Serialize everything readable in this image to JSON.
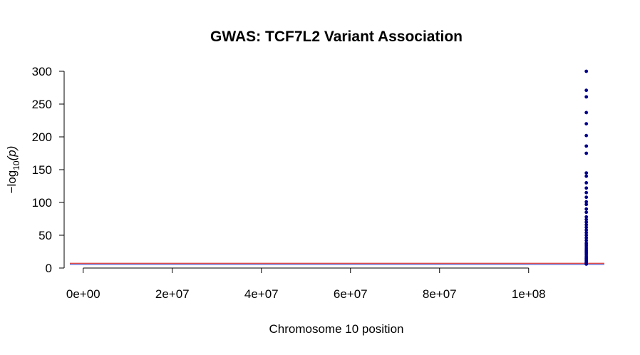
{
  "chart_data": {
    "type": "scatter",
    "title": "GWAS: TCF7L2 Variant Association",
    "xlabel": "Chromosome 10 position",
    "ylabel": {
      "prefix": "−log",
      "subscript": "10",
      "suffix": "(p)"
    },
    "xlim": [
      -3000000,
      117000000
    ],
    "ylim": [
      0,
      300
    ],
    "x_ticks": [
      0,
      20000000,
      40000000,
      60000000,
      80000000,
      100000000
    ],
    "x_tick_labels": [
      "0e+00",
      "2e+07",
      "4e+07",
      "6e+07",
      "8e+07",
      "1e+08"
    ],
    "y_ticks": [
      0,
      50,
      100,
      150,
      200,
      250,
      300
    ],
    "y_tick_labels": [
      "0",
      "50",
      "100",
      "150",
      "200",
      "250",
      "300"
    ],
    "point_color": "#00008b",
    "threshold_lines": [
      {
        "y": 7.3,
        "color": "#cc0000"
      },
      {
        "y": 5,
        "color": "#4040c0"
      }
    ],
    "series": [
      {
        "x": [
          112950000,
          112950000,
          112950000,
          112950000,
          112950000,
          112950000,
          112950000,
          112950000,
          112950000,
          112950000,
          112950000,
          112950000,
          112950000,
          112950000,
          112950000,
          112950000,
          112950000,
          112950000,
          112950000,
          112950000,
          112950000,
          112950000,
          112950000,
          112950000,
          112950000,
          112950000,
          112950000,
          112950000,
          112950000,
          112950000,
          112950000,
          112950000,
          112950000,
          112950000,
          112950000,
          112950000,
          112950000,
          112950000,
          112950000,
          112950000,
          112950000,
          112950000,
          112950000
        ],
        "y": [
          300,
          271,
          261,
          237,
          220,
          202,
          186,
          175,
          145,
          140,
          130,
          122,
          115,
          108,
          101,
          97,
          90,
          85,
          78,
          74,
          70,
          66,
          62,
          58,
          54,
          50,
          46,
          42,
          38,
          35,
          32,
          29,
          26,
          23,
          20,
          17,
          15,
          13,
          11,
          9,
          8,
          7,
          6
        ]
      }
    ]
  }
}
